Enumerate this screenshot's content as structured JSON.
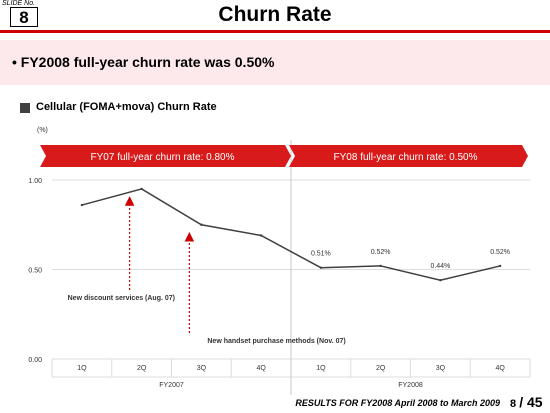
{
  "header": {
    "slide_no_label": "SLIDE No.",
    "slide_no": "8",
    "title": "Churn Rate"
  },
  "headline": "• FY2008 full-year churn rate was 0.50%",
  "subtitle": "Cellular (FOMA+mova) Churn Rate",
  "unit": "(%)",
  "banners": {
    "fy07": "FY07 full-year churn rate: 0.80%",
    "fy08": "FY08 full-year churn rate: 0.50%"
  },
  "chart_data": {
    "type": "line",
    "title": "Cellular (FOMA+mova) Churn Rate",
    "ylabel": "(%)",
    "categories": [
      "1Q",
      "2Q",
      "3Q",
      "4Q",
      "1Q",
      "2Q",
      "3Q",
      "4Q"
    ],
    "groups": [
      {
        "label": "FY2007",
        "start": 0,
        "end": 3
      },
      {
        "label": "FY2008",
        "start": 4,
        "end": 7
      }
    ],
    "series": [
      {
        "values": [
          0.86,
          0.95,
          0.75,
          0.69,
          0.51,
          0.52,
          0.44,
          0.52
        ]
      }
    ],
    "data_labels": [
      null,
      null,
      null,
      null,
      "0.51%",
      "0.52%",
      "0.44%",
      "0.52%"
    ],
    "ylim": [
      0.0,
      1.0
    ],
    "yticks": [
      "0.00",
      "0.50",
      "1.00"
    ],
    "yticks_values": [
      0.0,
      0.5,
      1.0
    ],
    "grid": true,
    "annotations": [
      {
        "text": "New discount services (Aug. 07)",
        "point_index": 1
      },
      {
        "text": "New handset purchase methods (Nov. 07)",
        "point_index": 2
      }
    ]
  },
  "colors": {
    "line": "#404040",
    "banner": "#d81a1a",
    "annotation_arrow": "#cc0000",
    "grid": "#dcdcdc"
  },
  "footer": {
    "text": "RESULTS FOR FY2008  April 2008 to March 2009",
    "page": "8",
    "total": "/ 45"
  }
}
